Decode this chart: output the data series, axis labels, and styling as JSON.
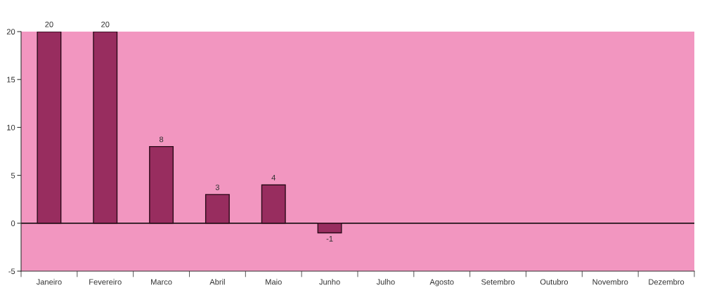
{
  "chart_data": {
    "type": "bar",
    "categories": [
      "Janeiro",
      "Fevereiro",
      "Marco",
      "Abril",
      "Maio",
      "Junho",
      "Julho",
      "Agosto",
      "Setembro",
      "Outubro",
      "Novembro",
      "Dezembro"
    ],
    "values": [
      20,
      20,
      8,
      3,
      4,
      -1,
      null,
      null,
      null,
      null,
      null,
      null
    ],
    "color": "#982d5f",
    "ylim": [
      -5,
      20
    ],
    "yticks": [
      -5,
      0,
      5,
      10,
      15,
      20
    ],
    "data_labels": true,
    "grid": false,
    "legend": false,
    "ref_lines": [
      {
        "axis": "y",
        "value": 0,
        "color": "#000000"
      }
    ]
  }
}
